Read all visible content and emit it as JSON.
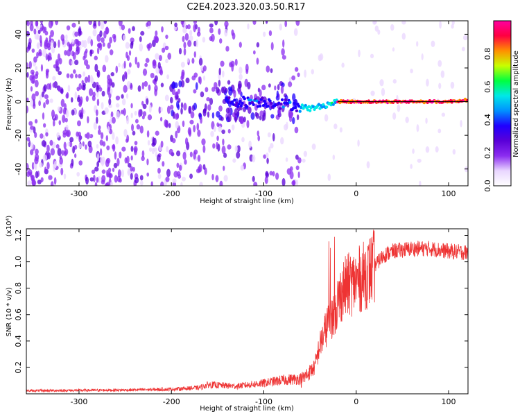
{
  "title": "C2E4.2023.320.03.50.R17",
  "chart_data": [
    {
      "type": "heatmap",
      "xlabel": "Height of straight line (km)",
      "ylabel": "Frequency (Hz)",
      "xlim": [
        -357,
        121
      ],
      "ylim": [
        -50,
        48
      ],
      "xticks": [
        -300,
        -200,
        -100,
        0,
        100
      ],
      "yticks": [
        -40,
        -20,
        0,
        20,
        40
      ],
      "colorbar": {
        "label": "Normalized spectral amplitude",
        "range": [
          0.0,
          1.0
        ],
        "ticks": [
          0.0,
          0.2,
          0.4,
          0.6,
          0.8
        ],
        "tick_labels": [
          "0.0",
          "0.2",
          "0.4",
          "0.6",
          "0.8"
        ],
        "colormap": [
          "#ffffff",
          "#e9d6ff",
          "#8b2cf0",
          "#5a00d8",
          "#1f00ff",
          "#0090ff",
          "#00e8e8",
          "#00ff40",
          "#c8ff00",
          "#ff9000",
          "#ff0040",
          "#ff00a0"
        ]
      },
      "ridge": [
        {
          "x": -150,
          "f": 0
        },
        {
          "x": -100,
          "f": 0
        },
        {
          "x": -70,
          "f": -2
        },
        {
          "x": -50,
          "f": -4
        },
        {
          "x": -40,
          "f": -3
        },
        {
          "x": -20,
          "f": 0
        },
        {
          "x": 0,
          "f": 0
        },
        {
          "x": 50,
          "f": 0
        },
        {
          "x": 100,
          "f": 0
        },
        {
          "x": 121,
          "f": 1
        }
      ],
      "grid": false
    },
    {
      "type": "line",
      "xlabel": "Height of straight line (km)",
      "ylabel": "SNR (10 * v/v)",
      "y_scale_label": "(x10⁴)",
      "xlim": [
        -357,
        121
      ],
      "ylim": [
        0,
        1.25
      ],
      "xticks": [
        -300,
        -200,
        -100,
        0,
        100
      ],
      "yticks": [
        0.2,
        0.4,
        0.6,
        0.8,
        1.0,
        1.2
      ],
      "ytick_labels": [
        "0.2",
        "0.4",
        "0.6",
        "0.8",
        "1.0",
        "1.2"
      ],
      "color": "#ee3333",
      "envelope": {
        "x": [
          -357,
          -250,
          -200,
          -170,
          -160,
          -130,
          -100,
          -80,
          -60,
          -45,
          -40,
          -35,
          -30,
          -25,
          -20,
          -15,
          -10,
          0,
          10,
          20,
          30,
          40,
          60,
          80,
          100,
          121
        ],
        "y": [
          0.02,
          0.025,
          0.03,
          0.04,
          0.06,
          0.05,
          0.07,
          0.09,
          0.1,
          0.2,
          0.35,
          0.45,
          0.55,
          0.6,
          0.7,
          0.78,
          0.82,
          0.85,
          0.9,
          0.97,
          1.05,
          1.08,
          1.1,
          1.1,
          1.08,
          1.07
        ]
      },
      "grid": false
    }
  ]
}
